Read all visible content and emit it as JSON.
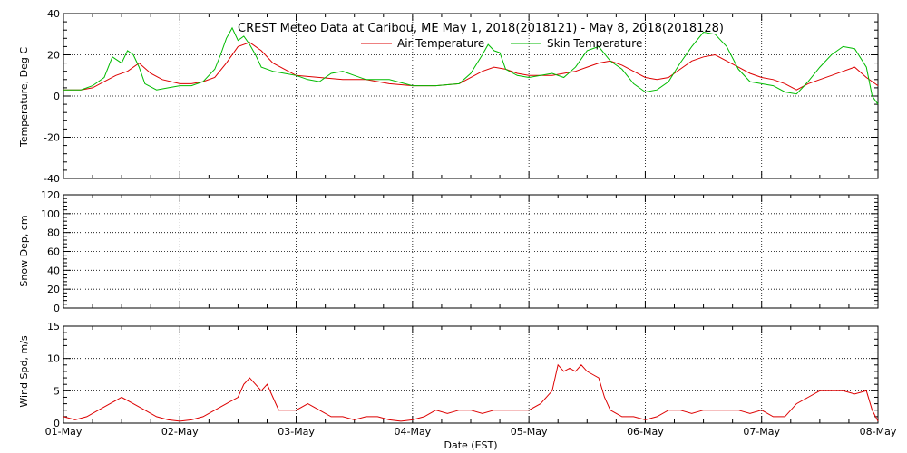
{
  "chart_data": [
    {
      "type": "line",
      "title": "CREST Meteo Data at Caribou, ME   May  1, 2018(2018121) - May  8, 2018(2018128)",
      "ylabel": "Temperature, Deg C",
      "ylim": [
        -40,
        40
      ],
      "yticks": [
        "40",
        "20",
        "0",
        "-20",
        "-40"
      ],
      "xlim": [
        0,
        7
      ],
      "legend_position": "top-center",
      "grid": true,
      "series": [
        {
          "name": "Air Temperature",
          "color": "#dd0000",
          "x": [
            0,
            0.15,
            0.25,
            0.35,
            0.45,
            0.55,
            0.65,
            0.75,
            0.85,
            1.0,
            1.1,
            1.2,
            1.3,
            1.4,
            1.5,
            1.6,
            1.7,
            1.8,
            1.9,
            2.0,
            2.2,
            2.4,
            2.6,
            2.8,
            3.0,
            3.2,
            3.4,
            3.6,
            3.7,
            3.8,
            3.9,
            4.0,
            4.1,
            4.2,
            4.3,
            4.4,
            4.5,
            4.6,
            4.7,
            4.8,
            4.9,
            5.0,
            5.1,
            5.2,
            5.3,
            5.4,
            5.5,
            5.6,
            5.7,
            5.8,
            5.9,
            6.0,
            6.1,
            6.2,
            6.3,
            6.4,
            6.5,
            6.6,
            6.7,
            6.8,
            6.9,
            7.0
          ],
          "y": [
            3,
            3,
            4,
            7,
            10,
            12,
            16,
            11,
            8,
            6,
            6,
            7,
            9,
            16,
            24,
            26,
            22,
            16,
            13,
            10,
            9,
            8,
            8,
            6,
            5,
            5,
            6,
            12,
            14,
            13,
            11,
            10,
            10,
            10,
            11,
            12,
            14,
            16,
            17,
            15,
            12,
            9,
            8,
            9,
            13,
            17,
            19,
            20,
            17,
            14,
            11,
            9,
            8,
            6,
            3,
            6,
            8,
            10,
            12,
            14,
            9,
            5
          ]
        },
        {
          "name": "Skin Temperature",
          "color": "#00bb00",
          "x": [
            0,
            0.15,
            0.25,
            0.35,
            0.42,
            0.5,
            0.55,
            0.6,
            0.65,
            0.7,
            0.8,
            0.9,
            1.0,
            1.1,
            1.2,
            1.3,
            1.35,
            1.4,
            1.45,
            1.5,
            1.55,
            1.6,
            1.65,
            1.7,
            1.8,
            1.9,
            2.0,
            2.1,
            2.2,
            2.3,
            2.4,
            2.5,
            2.6,
            2.8,
            3.0,
            3.2,
            3.4,
            3.5,
            3.6,
            3.65,
            3.7,
            3.75,
            3.8,
            3.9,
            4.0,
            4.1,
            4.2,
            4.3,
            4.4,
            4.5,
            4.6,
            4.7,
            4.8,
            4.9,
            5.0,
            5.1,
            5.2,
            5.3,
            5.4,
            5.5,
            5.6,
            5.7,
            5.8,
            5.9,
            6.0,
            6.1,
            6.2,
            6.3,
            6.4,
            6.5,
            6.6,
            6.7,
            6.8,
            6.9,
            6.95,
            7.0
          ],
          "y": [
            3,
            3,
            5,
            9,
            19,
            16,
            22,
            20,
            14,
            6,
            3,
            4,
            5,
            5,
            7,
            13,
            20,
            28,
            33,
            27,
            29,
            25,
            20,
            14,
            12,
            11,
            10,
            8,
            7,
            11,
            12,
            10,
            8,
            8,
            5,
            5,
            6,
            11,
            20,
            25,
            22,
            21,
            13,
            10,
            9,
            10,
            11,
            9,
            14,
            22,
            24,
            17,
            13,
            6,
            2,
            3,
            7,
            16,
            24,
            31,
            30,
            24,
            13,
            7,
            6,
            5,
            2,
            1,
            7,
            14,
            20,
            24,
            23,
            14,
            0,
            -4
          ]
        }
      ]
    },
    {
      "type": "line",
      "ylabel": "Snow Dep, cm",
      "ylim": [
        0,
        120
      ],
      "yticks": [
        "120",
        "100",
        "80",
        "60",
        "40",
        "20",
        "0"
      ],
      "xlim": [
        0,
        7
      ],
      "grid": true,
      "series": []
    },
    {
      "type": "line",
      "ylabel": "Wind Spd, m/s",
      "xlabel": "Date (EST)",
      "ylim": [
        0,
        15
      ],
      "yticks": [
        "15",
        "10",
        "5",
        "0"
      ],
      "xlim": [
        0,
        7
      ],
      "xticks": [
        "01-May",
        "02-May",
        "03-May",
        "04-May",
        "05-May",
        "06-May",
        "07-May",
        "08-May"
      ],
      "grid": true,
      "series": [
        {
          "color": "#dd0000",
          "x": [
            0,
            0.1,
            0.2,
            0.3,
            0.4,
            0.5,
            0.6,
            0.7,
            0.8,
            0.9,
            1.0,
            1.1,
            1.2,
            1.3,
            1.4,
            1.5,
            1.55,
            1.6,
            1.65,
            1.7,
            1.75,
            1.8,
            1.85,
            1.9,
            2.0,
            2.1,
            2.2,
            2.3,
            2.4,
            2.5,
            2.6,
            2.7,
            2.8,
            2.9,
            3.0,
            3.1,
            3.2,
            3.3,
            3.4,
            3.5,
            3.6,
            3.7,
            3.8,
            3.9,
            4.0,
            4.1,
            4.2,
            4.25,
            4.3,
            4.35,
            4.4,
            4.45,
            4.5,
            4.55,
            4.6,
            4.65,
            4.7,
            4.75,
            4.8,
            4.9,
            5.0,
            5.1,
            5.2,
            5.3,
            5.4,
            5.5,
            5.6,
            5.7,
            5.8,
            5.9,
            6.0,
            6.1,
            6.2,
            6.3,
            6.4,
            6.5,
            6.6,
            6.7,
            6.8,
            6.9,
            6.95,
            7.0
          ],
          "y": [
            1,
            0.5,
            1,
            2,
            3,
            4,
            3,
            2,
            1,
            0.5,
            0.3,
            0.5,
            1,
            2,
            3,
            4,
            6,
            7,
            6,
            5,
            6,
            4,
            2,
            2,
            2,
            3,
            2,
            1,
            1,
            0.5,
            1,
            1,
            0.5,
            0.3,
            0.5,
            1,
            2,
            1.5,
            2,
            2,
            1.5,
            2,
            2,
            2,
            2,
            3,
            5,
            9,
            8,
            8.5,
            8,
            9,
            8,
            7.5,
            7,
            4,
            2,
            1.5,
            1,
            1,
            0.5,
            1,
            2,
            2,
            1.5,
            2,
            2,
            2,
            2,
            1.5,
            2,
            1,
            1,
            3,
            4,
            5,
            5,
            5,
            4.5,
            5,
            2,
            0.3
          ]
        }
      ]
    }
  ]
}
